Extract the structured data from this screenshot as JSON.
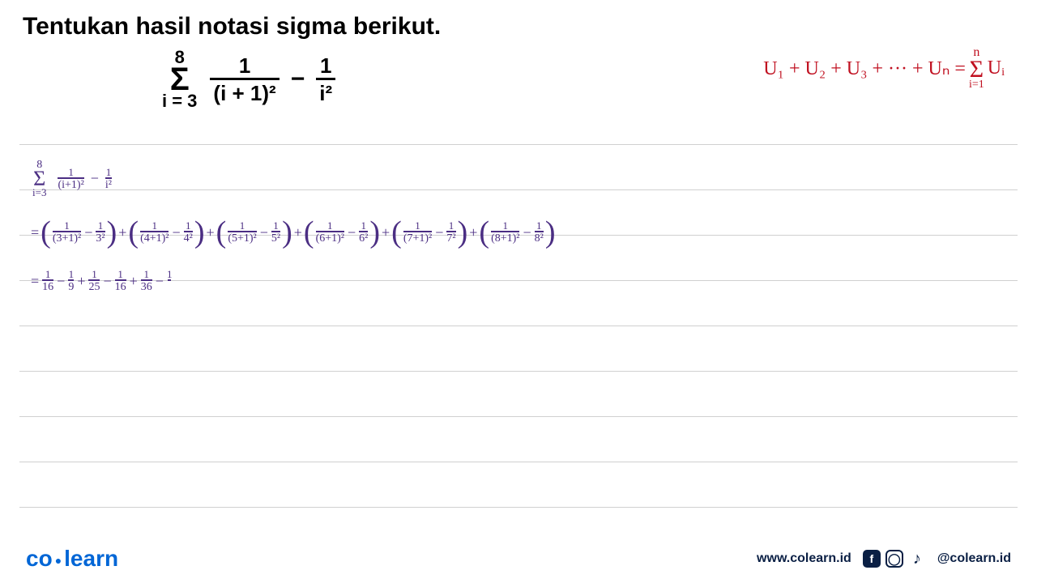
{
  "title": "Tentukan hasil notasi sigma berikut.",
  "formula": {
    "sigma_upper": "8",
    "sigma_symbol": "Σ",
    "sigma_lower": "i = 3",
    "frac1_num": "1",
    "frac1_den": "(i + 1)²",
    "minus": "−",
    "frac2_num": "1",
    "frac2_den": "i²"
  },
  "red_note": {
    "text_left": "U₁ + U₂ + U₃ + ··· + Uₙ =",
    "sigma_top": "n",
    "sigma_sym": "Σ",
    "sigma_bot": "i=1",
    "text_right": "Uᵢ",
    "color": "#c01020"
  },
  "work": {
    "color": "#4b2e83",
    "line1": {
      "sigma_top": "8",
      "sigma_sym": "Σ",
      "sigma_bot": "i=3",
      "frac1_num": "1",
      "frac1_den": "(i+1)²",
      "minus": "−",
      "frac2_num": "1",
      "frac2_den": "i²"
    },
    "line2_terms": [
      {
        "a_num": "1",
        "a_den": "(3+1)²",
        "b_num": "1",
        "b_den": "3²"
      },
      {
        "a_num": "1",
        "a_den": "(4+1)²",
        "b_num": "1",
        "b_den": "4²"
      },
      {
        "a_num": "1",
        "a_den": "(5+1)²",
        "b_num": "1",
        "b_den": "5²"
      },
      {
        "a_num": "1",
        "a_den": "(6+1)²",
        "b_num": "1",
        "b_den": "6²"
      },
      {
        "a_num": "1",
        "a_den": "(7+1)²",
        "b_num": "1",
        "b_den": "7²"
      },
      {
        "a_num": "1",
        "a_den": "(8+1)²",
        "b_num": "1",
        "b_den": "8²"
      }
    ],
    "line3_parts": [
      {
        "op": "=",
        "num": "1",
        "den": "16"
      },
      {
        "op": "−",
        "num": "1",
        "den": "9"
      },
      {
        "op": "+",
        "num": "1",
        "den": "25"
      },
      {
        "op": "−",
        "num": "1",
        "den": "16"
      },
      {
        "op": "+",
        "num": "1",
        "den": "36"
      },
      {
        "op": "−",
        "num": "1",
        "den": ""
      }
    ]
  },
  "ruled_lines": {
    "count": 9,
    "start_y": 0,
    "gap": 56,
    "color": "#d0d0d0"
  },
  "footer": {
    "brand_left": "co",
    "brand_right": "learn",
    "url": "www.colearn.id",
    "handle": "@colearn.id",
    "brand_color": "#0066d6",
    "text_color": "#0a1f44"
  }
}
